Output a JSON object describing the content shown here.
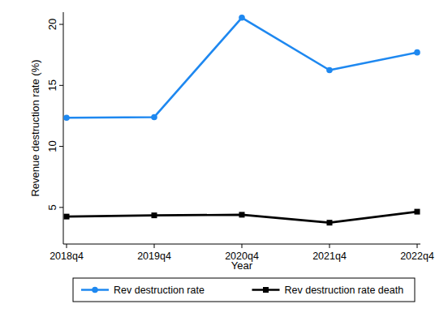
{
  "chart_data": {
    "type": "line",
    "x_label": "Year",
    "y_label": "Revenue destruction rate (%)",
    "categories": [
      "2018q4",
      "2019q4",
      "2020q4",
      "2021q4",
      "2022q4"
    ],
    "series": [
      {
        "name": "Rev destruction rate",
        "color": "#1e88f0",
        "marker": "circle",
        "line_style": "solid",
        "values": [
          12.35,
          12.4,
          20.55,
          16.25,
          17.7
        ]
      },
      {
        "name": "Rev destruction rate death",
        "color": "#000000",
        "marker": "square",
        "line_style": "solid",
        "values": [
          4.25,
          4.35,
          4.4,
          3.75,
          4.65
        ]
      }
    ],
    "ylim": [
      2,
      21
    ],
    "yticks": [
      5,
      10,
      15,
      20
    ],
    "grid": false,
    "legend": "bottom"
  }
}
